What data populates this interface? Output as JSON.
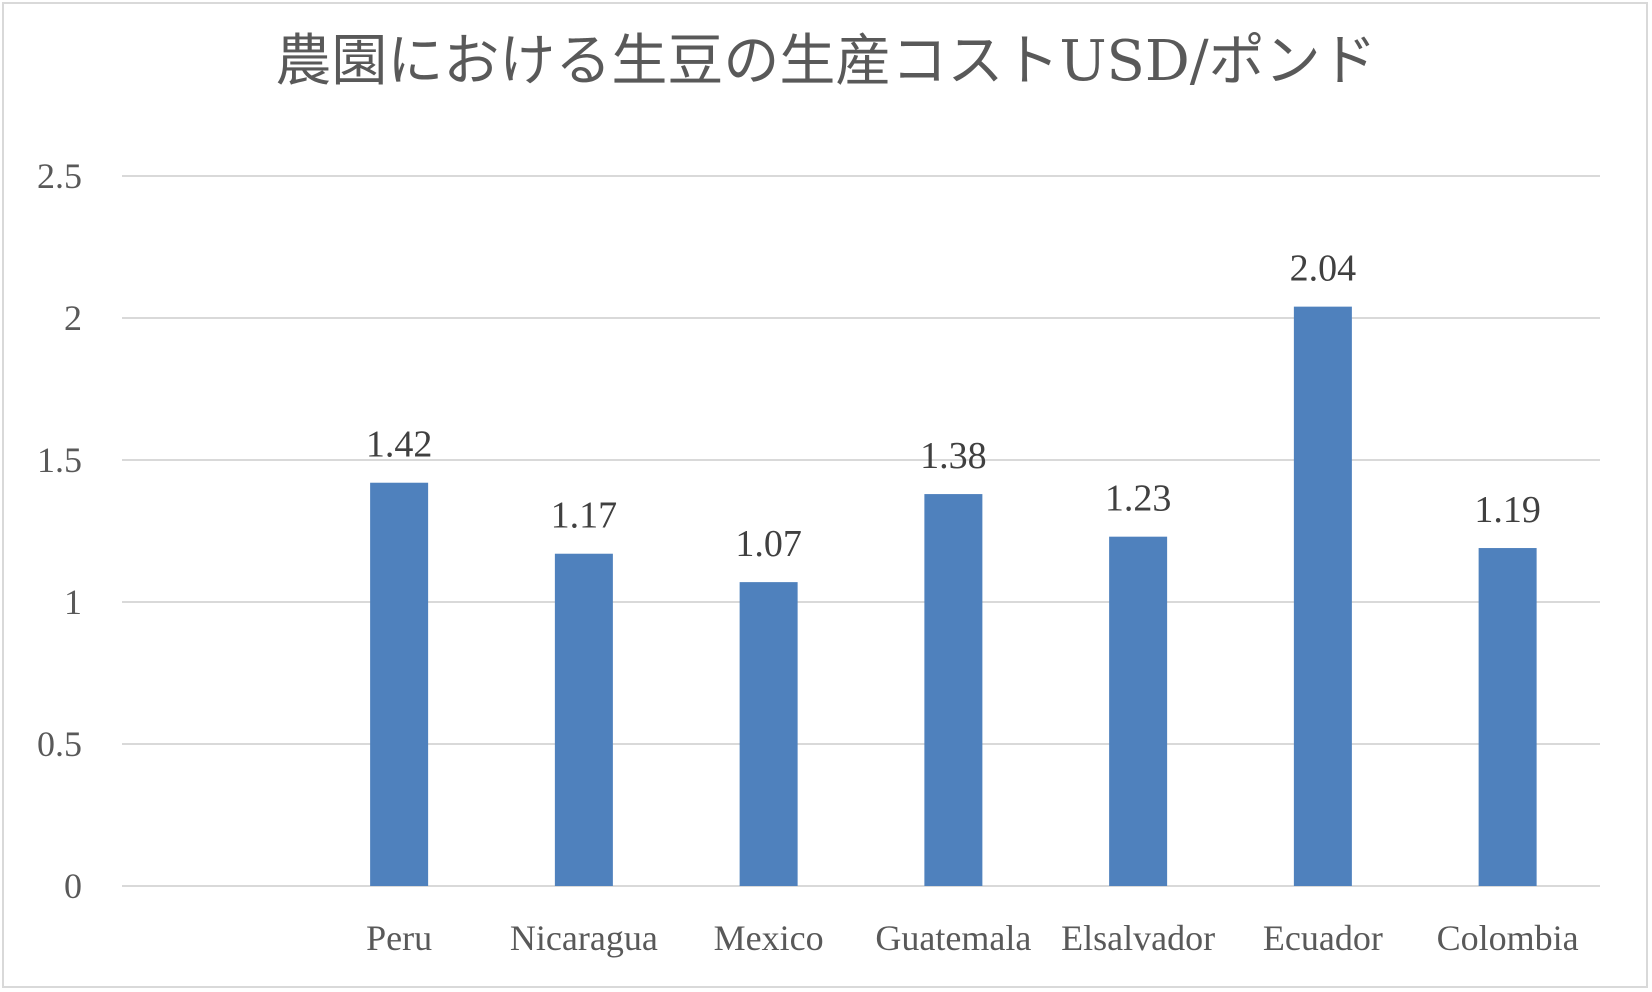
{
  "chart_data": {
    "type": "bar",
    "title": "農園における生豆の生産コストUSD/ポンド",
    "xlabel": "",
    "ylabel": "",
    "categories": [
      "",
      "Peru",
      "Nicaragua",
      "Mexico",
      "Guatemala",
      "Elsalvador",
      "Ecuador",
      "Colombia"
    ],
    "values": [
      null,
      1.42,
      1.17,
      1.07,
      1.38,
      1.23,
      2.04,
      1.19
    ],
    "data_labels": [
      "",
      "1.42",
      "1.17",
      "1.07",
      "1.38",
      "1.23",
      "2.04",
      "1.19"
    ],
    "ylim": [
      0,
      2.5
    ],
    "yticks": [
      0,
      0.5,
      1,
      1.5,
      2,
      2.5
    ],
    "ytick_labels": [
      "0",
      "0.5",
      "1",
      "1.5",
      "2",
      "2.5"
    ],
    "grid": true,
    "legend": "none",
    "bar_color": "#4f81bd",
    "grid_color": "#d9d9d9"
  }
}
